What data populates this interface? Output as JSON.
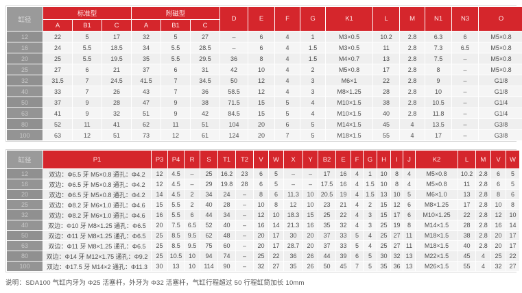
{
  "colors": {
    "header_red": "#d5262c",
    "header_text": "#ffe9e9",
    "bore_bg": "#909090",
    "bore_bg_alt": "#949494",
    "bore_text": "#c8c8c8",
    "bore_head_bg": "#9a9a9a",
    "bore_head_text": "#dedede",
    "row_even": "#efefef",
    "row_odd": "#f5f5f5",
    "cell_text": "#4d4d4d",
    "page_bg": "#ffffff"
  },
  "table1": {
    "bore_header": "缸径",
    "group_standard": "标准型",
    "group_magnet": "附磁型",
    "sub_cols": [
      "A",
      "B1",
      "C",
      "A",
      "B1",
      "C"
    ],
    "tail_cols": [
      "D",
      "E",
      "F",
      "G",
      "K1",
      "L",
      "M",
      "N1",
      "N3",
      "O"
    ],
    "rows": [
      {
        "bore": "12",
        "values": [
          "22",
          "5",
          "17",
          "32",
          "5",
          "27",
          "–",
          "6",
          "4",
          "1",
          "M3×0.5",
          "10.2",
          "2.8",
          "6.3",
          "6",
          "M5×0.8"
        ]
      },
      {
        "bore": "16",
        "values": [
          "24",
          "5.5",
          "18.5",
          "34",
          "5.5",
          "28.5",
          "–",
          "6",
          "4",
          "1.5",
          "M3×0.5",
          "11",
          "2.8",
          "7.3",
          "6.5",
          "M5×0.8"
        ]
      },
      {
        "bore": "20",
        "values": [
          "25",
          "5.5",
          "19.5",
          "35",
          "5.5",
          "29.5",
          "36",
          "8",
          "4",
          "1.5",
          "M4×0.7",
          "13",
          "2.8",
          "7.5",
          "–",
          "M5×0.8"
        ]
      },
      {
        "bore": "25",
        "values": [
          "27",
          "6",
          "21",
          "37",
          "6",
          "31",
          "42",
          "10",
          "4",
          "2",
          "M5×0.8",
          "17",
          "2.8",
          "8",
          "–",
          "M5×0.8"
        ]
      },
      {
        "bore": "32",
        "values": [
          "31.5",
          "7",
          "24.5",
          "41.5",
          "7",
          "34.5",
          "50",
          "12",
          "4",
          "3",
          "M6×1",
          "22",
          "2.8",
          "9",
          "–",
          "G1/8"
        ]
      },
      {
        "bore": "40",
        "values": [
          "33",
          "7",
          "26",
          "43",
          "7",
          "36",
          "58.5",
          "12",
          "4",
          "3",
          "M8×1.25",
          "28",
          "2.8",
          "10",
          "–",
          "G1/8"
        ]
      },
      {
        "bore": "50",
        "values": [
          "37",
          "9",
          "28",
          "47",
          "9",
          "38",
          "71.5",
          "15",
          "5",
          "4",
          "M10×1.5",
          "38",
          "2.8",
          "10.5",
          "–",
          "G1/4"
        ]
      },
      {
        "bore": "63",
        "values": [
          "41",
          "9",
          "32",
          "51",
          "9",
          "42",
          "84.5",
          "15",
          "5",
          "4",
          "M10×1.5",
          "40",
          "2.8",
          "11.8",
          "–",
          "G1/4"
        ]
      },
      {
        "bore": "80",
        "values": [
          "52",
          "11",
          "41",
          "62",
          "11",
          "51",
          "104",
          "20",
          "6",
          "5",
          "M14×1.5",
          "45",
          "4",
          "13.5",
          "–",
          "G3/8"
        ]
      },
      {
        "bore": "100",
        "values": [
          "63",
          "12",
          "51",
          "73",
          "12",
          "61",
          "124",
          "20",
          "7",
          "5",
          "M18×1.5",
          "55",
          "4",
          "17",
          "–",
          "G3/8"
        ]
      }
    ]
  },
  "table2": {
    "bore_header": "缸径",
    "cols": [
      "P1",
      "P3",
      "P4",
      "R",
      "S",
      "T1",
      "T2",
      "V",
      "W",
      "X",
      "Y",
      "B2",
      "E",
      "F",
      "G",
      "H",
      "I",
      "J",
      "K2",
      "L",
      "M",
      "V",
      "W"
    ],
    "rows": [
      {
        "bore": "12",
        "p1": "双边：Φ6.5 牙 M5×0.8 通孔：Φ4.2",
        "values": [
          "12",
          "4.5",
          "–",
          "25",
          "16.2",
          "23",
          "6",
          "5",
          "–",
          "–",
          "17",
          "16",
          "4",
          "1",
          "10",
          "8",
          "4",
          "M5×0.8",
          "10.2",
          "2.8",
          "6",
          "5"
        ]
      },
      {
        "bore": "16",
        "p1": "双边：Φ6.5 牙 M5×0.8 通孔：Φ4.2",
        "values": [
          "12",
          "4.5",
          "–",
          "29",
          "19.8",
          "28",
          "6",
          "5",
          "–",
          "–",
          "17.5",
          "16",
          "4",
          "1.5",
          "10",
          "8",
          "4",
          "M5×0.8",
          "11",
          "2.8",
          "6",
          "5"
        ]
      },
      {
        "bore": "20",
        "p1": "双边：Φ6.5 牙 M5×0.8 通孔：Φ4.2",
        "values": [
          "14",
          "4.5",
          "2",
          "34",
          "24",
          "–",
          "8",
          "6",
          "11.3",
          "10",
          "20.5",
          "19",
          "4",
          "1.5",
          "13",
          "10",
          "5",
          "M6×1.0",
          "13",
          "2.8",
          "8",
          "6"
        ]
      },
      {
        "bore": "25",
        "p1": "双边：Φ8.2 牙 M6×1.0 通孔：Φ4.6",
        "values": [
          "15",
          "5.5",
          "2",
          "40",
          "28",
          "–",
          "10",
          "8",
          "12",
          "10",
          "23",
          "21",
          "4",
          "2",
          "15",
          "12",
          "6",
          "M8×1.25",
          "17",
          "2.8",
          "10",
          "8"
        ]
      },
      {
        "bore": "32",
        "p1": "双边：Φ8.2 牙 M6×1.0 通孔：Φ4.6",
        "values": [
          "16",
          "5.5",
          "6",
          "44",
          "34",
          "–",
          "12",
          "10",
          "18.3",
          "15",
          "25",
          "22",
          "4",
          "3",
          "15",
          "17",
          "6",
          "M10×1.25",
          "22",
          "2.8",
          "12",
          "10"
        ]
      },
      {
        "bore": "40",
        "p1": "双边：Φ10 牙 M8×1.25 通孔：Φ6.5",
        "values": [
          "20",
          "7.5",
          "6.5",
          "52",
          "40",
          "–",
          "16",
          "14",
          "21.3",
          "16",
          "35",
          "32",
          "4",
          "3",
          "25",
          "19",
          "8",
          "M14×1.5",
          "28",
          "2.8",
          "16",
          "14"
        ]
      },
      {
        "bore": "50",
        "p1": "双边：Φ11 牙 M8×1.25 通孔：Φ6.5",
        "values": [
          "25",
          "8.5",
          "9.5",
          "62",
          "48",
          "–",
          "20",
          "17",
          "30",
          "20",
          "37",
          "33",
          "5",
          "4",
          "25",
          "27",
          "11",
          "M18×1.5",
          "38",
          "2.8",
          "20",
          "17"
        ]
      },
      {
        "bore": "63",
        "p1": "双边：Φ11 牙 M8×1.25 通孔：Φ6.5",
        "values": [
          "25",
          "8.5",
          "9.5",
          "75",
          "60",
          "–",
          "20",
          "17",
          "28.7",
          "20",
          "37",
          "33",
          "5",
          "4",
          "25",
          "27",
          "11",
          "M18×1.5",
          "40",
          "2.8",
          "20",
          "17"
        ]
      },
      {
        "bore": "80",
        "p1": "双边：Φ14 牙 M12×1.75 通孔：Φ9.2",
        "values": [
          "25",
          "10.5",
          "10",
          "94",
          "74",
          "–",
          "25",
          "22",
          "36",
          "26",
          "44",
          "39",
          "6",
          "5",
          "30",
          "32",
          "13",
          "M22×1.5",
          "45",
          "4",
          "25",
          "22"
        ]
      },
      {
        "bore": "100",
        "p1": "双边：Φ17.5 牙 M14×2 通孔：Φ11.3",
        "values": [
          "30",
          "13",
          "10",
          "114",
          "90",
          "–",
          "32",
          "27",
          "35",
          "26",
          "50",
          "45",
          "7",
          "5",
          "35",
          "36",
          "13",
          "M26×1.5",
          "55",
          "4",
          "32",
          "27"
        ]
      }
    ]
  },
  "note": "说明：SDA100 气缸内牙为 Φ25 活塞杆，外牙为 Φ32 活塞杆，气缸行程超过 50 行程缸筒加长 10mm"
}
